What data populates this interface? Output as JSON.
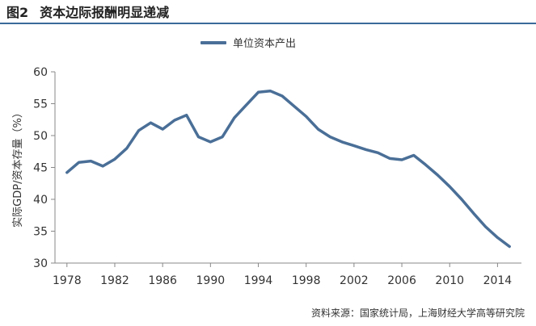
{
  "figure": {
    "number": "图2",
    "title": "资本边际报酬明显递减",
    "source": "资料来源：国家统计局，上海财经大学高等研究院"
  },
  "chart_data": {
    "type": "line",
    "ylabel": "实际GDP/资本存量（%）",
    "xlabel": "",
    "ylim": [
      30,
      60
    ],
    "yticks": [
      30,
      35,
      40,
      45,
      50,
      55,
      60
    ],
    "xlim": [
      1977,
      2016
    ],
    "xticks": [
      "1978",
      "1982",
      "1986",
      "1990",
      "1994",
      "1998",
      "2002",
      "2006",
      "2010",
      "2014"
    ],
    "grid": false,
    "legend_position": "top-center",
    "series": [
      {
        "name": "单位资本产出",
        "color": "#4a6f97",
        "x": [
          1978,
          1979,
          1980,
          1981,
          1982,
          1983,
          1984,
          1985,
          1986,
          1987,
          1988,
          1989,
          1990,
          1991,
          1992,
          1993,
          1994,
          1995,
          1996,
          1997,
          1998,
          1999,
          2000,
          2001,
          2002,
          2003,
          2004,
          2005,
          2006,
          2007,
          2008,
          2009,
          2010,
          2011,
          2012,
          2013,
          2014,
          2015
        ],
        "values": [
          44.2,
          45.8,
          46.0,
          45.2,
          46.3,
          48.0,
          50.8,
          52.0,
          51.0,
          52.4,
          53.2,
          49.8,
          49.0,
          49.8,
          52.8,
          54.8,
          56.8,
          57.0,
          56.2,
          54.6,
          53.0,
          51.0,
          49.8,
          49.0,
          48.4,
          47.8,
          47.3,
          46.4,
          46.2,
          46.9,
          45.4,
          43.8,
          42.0,
          40.0,
          37.8,
          35.7,
          34.0,
          32.6
        ]
      }
    ]
  }
}
